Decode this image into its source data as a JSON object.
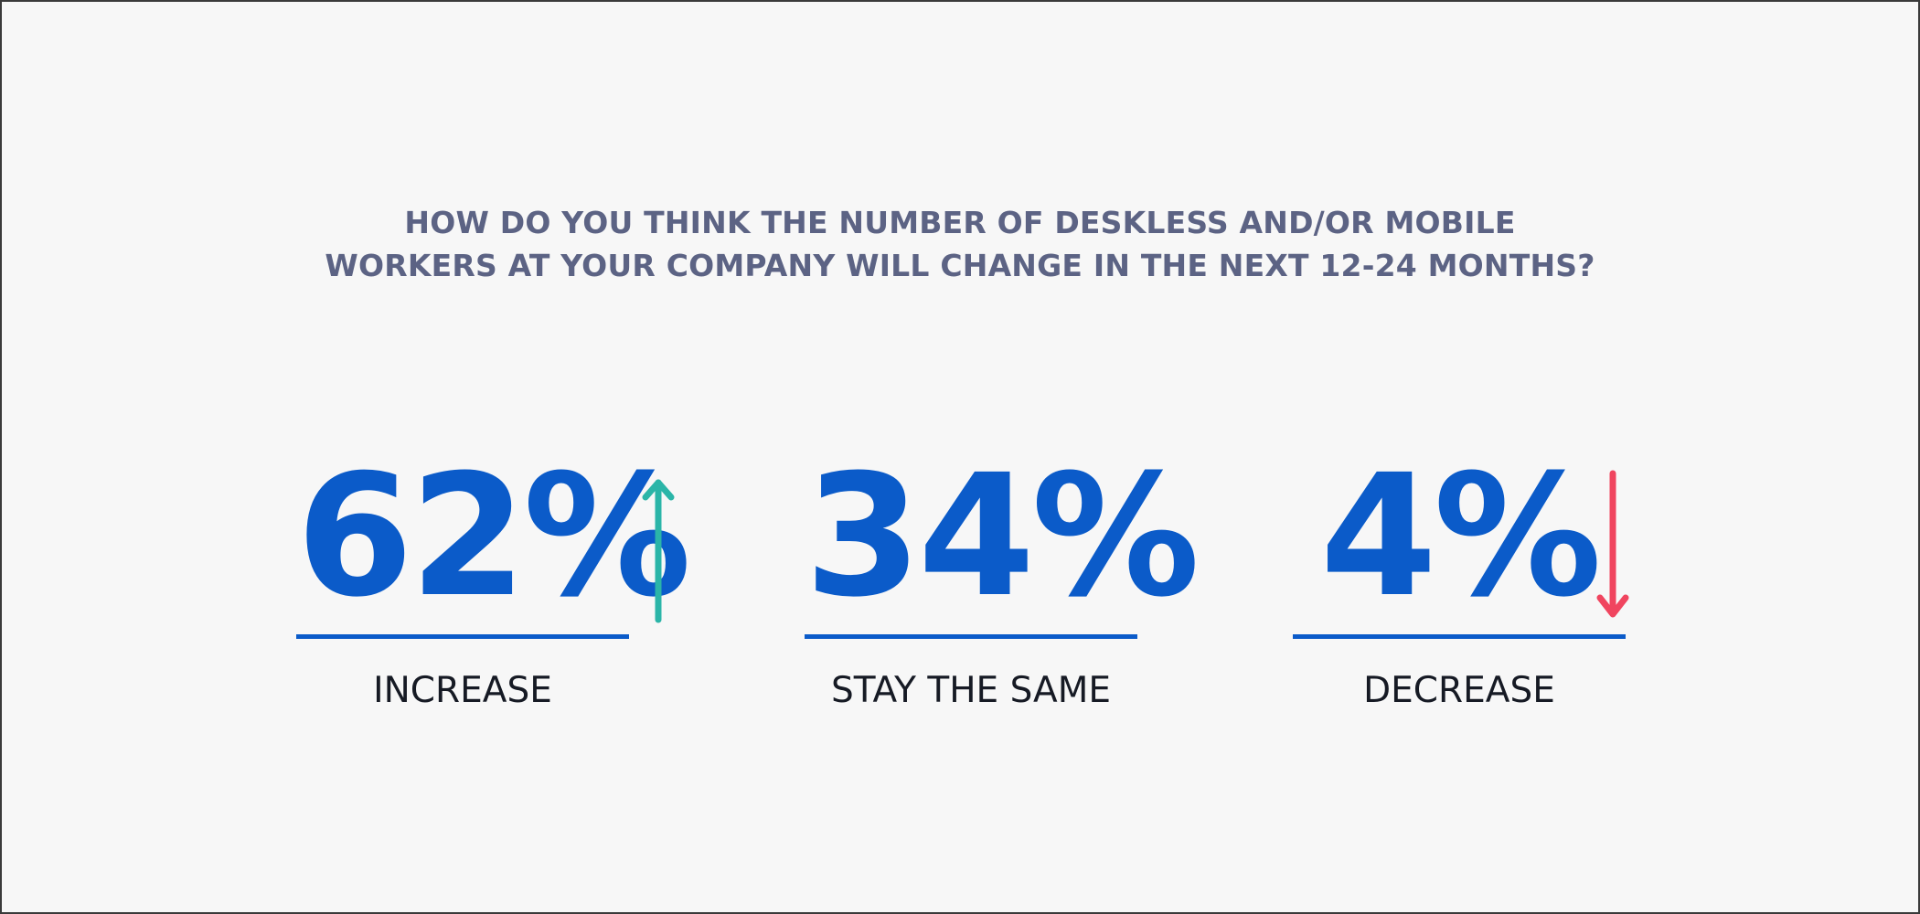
{
  "title": {
    "line1": "HOW DO YOU THINK THE NUMBER OF DESKLESS AND/OR MOBILE",
    "line2": "WORKERS AT YOUR COMPANY WILL CHANGE IN THE NEXT 12-24 MONTHS?"
  },
  "chart_data": {
    "type": "table",
    "title": "HOW DO YOU THINK THE NUMBER OF DESKLESS AND/OR MOBILE WORKERS AT YOUR COMPANY WILL CHANGE IN THE NEXT 12-24 MONTHS?",
    "categories": [
      "INCREASE",
      "STAY THE SAME",
      "DECREASE"
    ],
    "values": [
      62,
      34,
      4
    ],
    "value_labels": [
      "62%",
      "34%",
      "4%"
    ],
    "unit": "%"
  },
  "stats": [
    {
      "value": "62%",
      "label": "INCREASE",
      "indicator": "arrow-up-icon"
    },
    {
      "value": "34%",
      "label": "STAY THE SAME",
      "indicator": ""
    },
    {
      "value": "4%",
      "label": "DECREASE",
      "indicator": "arrow-down-icon"
    }
  ],
  "colors": {
    "background": "#f7f7f7",
    "title": "#5c6384",
    "value": "#0b5bc9",
    "rule": "#0b5bc9",
    "label": "#161a24",
    "increase_arrow": "#2bb5a8",
    "decrease_arrow": "#f0455f"
  }
}
